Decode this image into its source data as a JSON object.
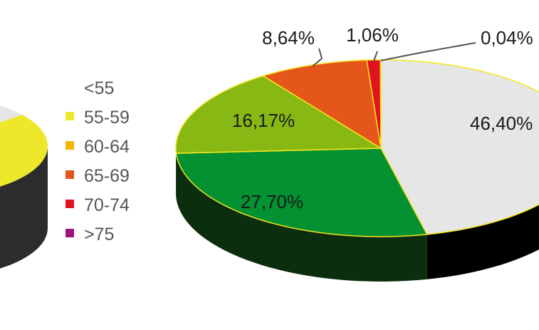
{
  "chart_data": [
    {
      "type": "pie",
      "style": "3d",
      "cropped": "left",
      "categories": [
        "<55",
        "55-59",
        "60-64",
        "65-69",
        "70-74",
        ">75"
      ],
      "colors": [
        "#e6e6e6",
        "#ede82a",
        "#f2b500",
        "#e4561a",
        "#e0141e",
        "#a0127f"
      ],
      "side_colors": [
        "#2c2c2c",
        "#2c2c2c",
        "#2c2c2c",
        "#2c2c2c",
        "#2c2c2c",
        "#2c2c2c"
      ],
      "values": [
        66.0,
        34.0,
        0,
        0,
        0,
        0
      ],
      "data_labels": [],
      "legend": {
        "placement": "right",
        "entries": [
          {
            "label": "<55",
            "color": "#ffffff"
          },
          {
            "label": "55-59",
            "color": "#ede82a"
          },
          {
            "label": "60-64",
            "color": "#f2b500"
          },
          {
            "label": "65-69",
            "color": "#e4561a"
          },
          {
            "label": "70-74",
            "color": "#e0141e"
          },
          {
            "label": ">75",
            "color": "#a0127f"
          }
        ]
      }
    },
    {
      "type": "pie",
      "style": "3d",
      "cropped": "right",
      "categories": [
        "<55",
        "55-59",
        "60-64",
        "65-69",
        "70-74",
        ">75"
      ],
      "values": [
        46.4,
        27.7,
        16.17,
        8.64,
        1.06,
        0.04
      ],
      "colors": [
        "#e6e6e6",
        "#039131",
        "#88b814",
        "#e4561a",
        "#e0141e",
        "#a0127f"
      ],
      "side_colors": [
        "#000000",
        "#0b2e0e",
        "#2c4a0a",
        "#5a2008",
        "#5a0608",
        "#3a0530"
      ],
      "data_labels": [
        "46,40%",
        "27,70%",
        "16,17%",
        "8,64%",
        "1,06%",
        "0,04%"
      ]
    }
  ]
}
